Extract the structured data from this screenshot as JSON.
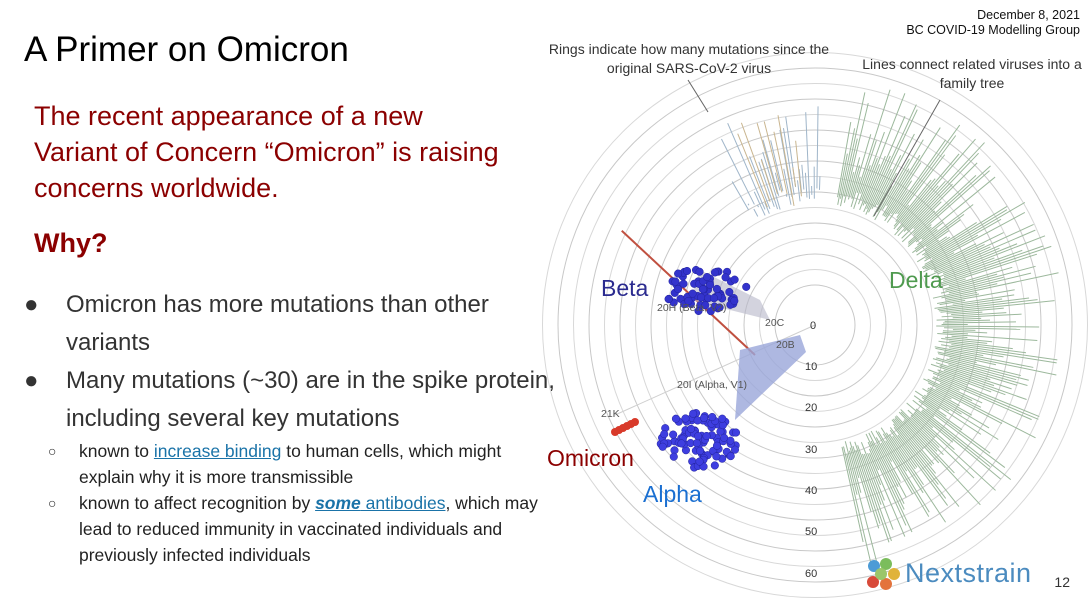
{
  "header": {
    "date": "December 8, 2021",
    "group": "BC COVID-19 Modelling Group"
  },
  "title": "A Primer on Omicron",
  "lead": "The recent appearance of a new Variant of Concern “Omicron” is raising concerns worldwide.",
  "why": "Why?",
  "bullets": [
    "Omicron has more mutations than other variants",
    "Many mutations (~30) are in the spike protein, including several key mutations"
  ],
  "subbullets": {
    "one": {
      "pre": "known to ",
      "link": "increase binding",
      "post": " to human cells, which might explain why it is more transmissible"
    },
    "two": {
      "pre": "known to affect recognition by ",
      "link_em": "some",
      "link_rest": " antibodies",
      "post": ", which may lead to reduced immunity in vaccinated individuals and previously infected individuals"
    }
  },
  "figure": {
    "note_rings": "Rings indicate how many mutations since the original SARS-CoV-2 virus",
    "note_lines": "Lines connect related viruses into a family tree",
    "labels": {
      "beta": "Beta",
      "delta": "Delta",
      "omicron": "Omicron",
      "alpha": "Alpha"
    },
    "clades": {
      "c20h": "20H (Beta, V2)",
      "c20c": "20C",
      "c20b": "20B",
      "c20i": "20I (Alpha, V1)",
      "c21k": "21K"
    },
    "ring_values": [
      "0",
      "10",
      "20",
      "30",
      "40",
      "50",
      "60"
    ],
    "colors": {
      "beta": "#2b2b8f",
      "delta": "#4f9a4f",
      "omicron": "#8b0000",
      "alpha": "#1a6fd1",
      "delta_branch": "#9cb89c",
      "beta_branch": "#9fb5c9",
      "omicron_branch": "#c05040",
      "alpha_points": "#3e3ee0"
    },
    "brand": "Nextstrain"
  },
  "page_number": "12"
}
